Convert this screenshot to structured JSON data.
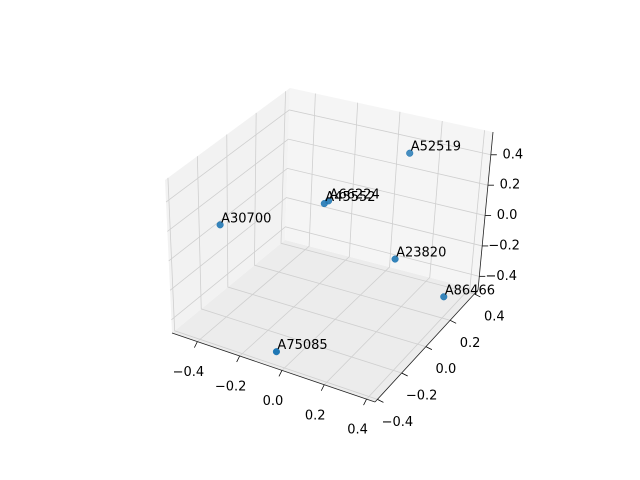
{
  "chart_data": {
    "type": "scatter3d",
    "labels": [
      "A52519",
      "A66224",
      "A45552",
      "A30700",
      "A23820",
      "A86466",
      "A75085"
    ],
    "x": [
      0.16,
      -0.06,
      -0.07,
      -0.445,
      0.22,
      0.39,
      -0.05
    ],
    "y": [
      0.26,
      0.02,
      0.005,
      -0.165,
      0.09,
      0.22,
      -0.38
    ],
    "z": [
      0.47,
      0.27,
      0.26,
      0.09,
      -0.07,
      -0.37,
      -0.42
    ],
    "color": "#1f77b4",
    "xlim": [
      -0.52,
      0.44
    ],
    "ylim": [
      -0.42,
      0.43
    ],
    "zlim": [
      -0.49,
      0.55
    ],
    "xticks": [
      {
        "value": -0.4,
        "label": "−0.4"
      },
      {
        "value": -0.2,
        "label": "−0.2"
      },
      {
        "value": 0.0,
        "label": "0.0"
      },
      {
        "value": 0.2,
        "label": "0.2"
      },
      {
        "value": 0.4,
        "label": "0.4"
      }
    ],
    "yticks": [
      {
        "value": -0.4,
        "label": "−0.4"
      },
      {
        "value": -0.2,
        "label": "−0.2"
      },
      {
        "value": 0.0,
        "label": "0.0"
      },
      {
        "value": 0.2,
        "label": "0.2"
      },
      {
        "value": 0.4,
        "label": "0.4"
      }
    ],
    "zticks": [
      {
        "value": -0.4,
        "label": "−0.4"
      },
      {
        "value": -0.2,
        "label": "−0.2"
      },
      {
        "value": 0.0,
        "label": "0.0"
      },
      {
        "value": 0.2,
        "label": "0.2"
      },
      {
        "value": 0.4,
        "label": "0.4"
      }
    ],
    "grid": true
  }
}
